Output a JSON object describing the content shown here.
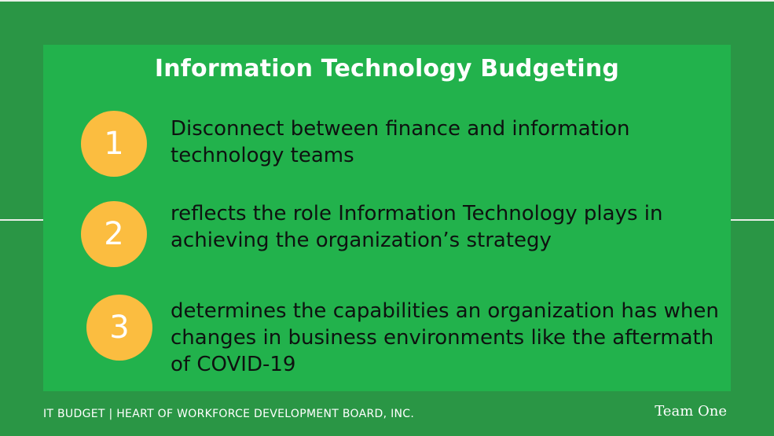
{
  "slide": {
    "title": "Information Technology Budgeting",
    "items": [
      {
        "number": "1",
        "text": "Disconnect between finance and information technology teams"
      },
      {
        "number": "2",
        "text": "reflects the role Information Technology plays in achieving the organization’s strategy"
      },
      {
        "number": "3",
        "text": "determines the capabilities an organization has when changes in business environments like the aftermath of COVID-19"
      }
    ]
  },
  "footer": {
    "left": "IT BUDGET | HEART OF WORKFORCE DEVELOPMENT BOARD, INC.",
    "right": "Team One"
  },
  "colors": {
    "background": "#2a9645",
    "panel": "#22b24c",
    "badge": "#fbbd40",
    "title_text": "#ffffff",
    "body_text": "#0e1210"
  }
}
